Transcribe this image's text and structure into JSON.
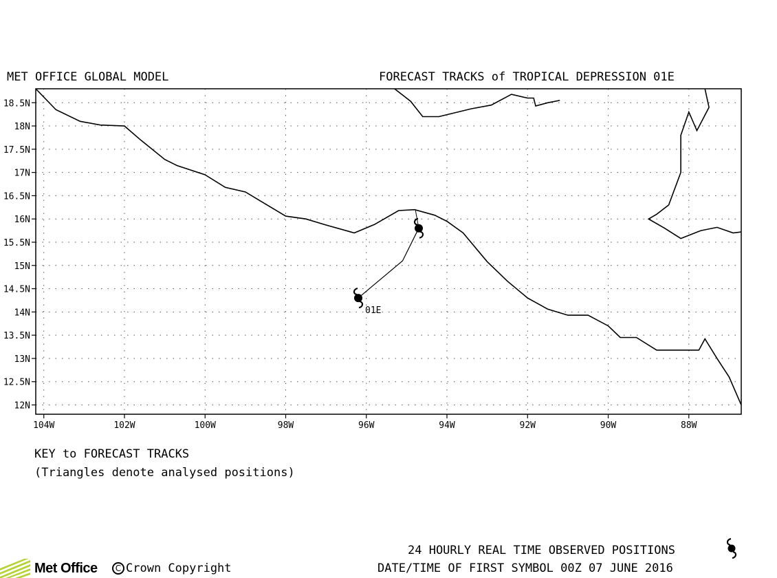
{
  "header": {
    "model": "MET OFFICE GLOBAL MODEL",
    "title": "FORECAST TRACKS of TROPICAL DEPRESSION 01E"
  },
  "map": {
    "lon_range": [
      -104.2,
      -86.7
    ],
    "lat_range": [
      11.8,
      18.8
    ],
    "grid": "dotted, every 2° longitude and 0.5° latitude",
    "x_ticks": [
      {
        "lon": -104,
        "label": "104W"
      },
      {
        "lon": -102,
        "label": "102W"
      },
      {
        "lon": -100,
        "label": "100W"
      },
      {
        "lon": -98,
        "label": "98W"
      },
      {
        "lon": -96,
        "label": "96W"
      },
      {
        "lon": -94,
        "label": "94W"
      },
      {
        "lon": -92,
        "label": "92W"
      },
      {
        "lon": -90,
        "label": "90W"
      },
      {
        "lon": -88,
        "label": "88W"
      }
    ],
    "y_ticks": [
      {
        "lat": 18.5,
        "label": "18.5N"
      },
      {
        "lat": 18,
        "label": "18N"
      },
      {
        "lat": 17.5,
        "label": "17.5N"
      },
      {
        "lat": 17,
        "label": "17N"
      },
      {
        "lat": 16.5,
        "label": "16.5N"
      },
      {
        "lat": 16,
        "label": "16N"
      },
      {
        "lat": 15.5,
        "label": "15.5N"
      },
      {
        "lat": 15,
        "label": "15N"
      },
      {
        "lat": 14.5,
        "label": "14.5N"
      },
      {
        "lat": 14,
        "label": "14N"
      },
      {
        "lat": 13.5,
        "label": "13.5N"
      },
      {
        "lat": 13,
        "label": "13N"
      },
      {
        "lat": 12.5,
        "label": "12.5N"
      },
      {
        "lat": 12,
        "label": "12N"
      }
    ],
    "coastlines": [
      [
        [
          -104.2,
          18.8
        ],
        [
          -103.7,
          18.35
        ],
        [
          -103.1,
          18.1
        ],
        [
          -102.6,
          18.02
        ],
        [
          -102.0,
          18.0
        ],
        [
          -101.6,
          17.7
        ],
        [
          -101.0,
          17.28
        ],
        [
          -100.7,
          17.15
        ],
        [
          -100.0,
          16.95
        ],
        [
          -99.5,
          16.68
        ],
        [
          -99.0,
          16.58
        ],
        [
          -98.5,
          16.32
        ],
        [
          -98.0,
          16.06
        ],
        [
          -97.5,
          16.0
        ],
        [
          -97.0,
          15.87
        ],
        [
          -96.3,
          15.7
        ],
        [
          -95.8,
          15.88
        ],
        [
          -95.2,
          16.18
        ],
        [
          -94.8,
          16.2
        ],
        [
          -94.3,
          16.08
        ],
        [
          -94.0,
          15.95
        ],
        [
          -93.6,
          15.7
        ],
        [
          -93.0,
          15.08
        ],
        [
          -92.5,
          14.66
        ],
        [
          -92.0,
          14.3
        ],
        [
          -91.5,
          14.06
        ],
        [
          -91.0,
          13.93
        ],
        [
          -90.5,
          13.93
        ],
        [
          -90.0,
          13.7
        ],
        [
          -89.7,
          13.45
        ],
        [
          -89.3,
          13.45
        ],
        [
          -88.8,
          13.18
        ],
        [
          -88.0,
          13.18
        ],
        [
          -87.75,
          13.18
        ],
        [
          -87.6,
          13.42
        ],
        [
          -87.3,
          13.0
        ],
        [
          -87.0,
          12.6
        ],
        [
          -86.7,
          12.0
        ]
      ],
      [
        [
          -95.3,
          18.8
        ],
        [
          -94.9,
          18.53
        ],
        [
          -94.6,
          18.2
        ],
        [
          -94.2,
          18.2
        ],
        [
          -93.4,
          18.37
        ],
        [
          -92.9,
          18.45
        ],
        [
          -92.4,
          18.68
        ],
        [
          -92.0,
          18.6
        ],
        [
          -91.85,
          18.6
        ],
        [
          -91.8,
          18.43
        ],
        [
          -91.5,
          18.5
        ],
        [
          -91.2,
          18.55
        ]
      ],
      [
        [
          -87.6,
          18.8
        ],
        [
          -87.5,
          18.4
        ],
        [
          -87.8,
          17.9
        ],
        [
          -88.0,
          18.3
        ],
        [
          -88.2,
          17.8
        ],
        [
          -88.2,
          17.0
        ],
        [
          -88.5,
          16.3
        ],
        [
          -88.8,
          16.1
        ],
        [
          -89.0,
          16.0
        ],
        [
          -88.6,
          15.8
        ],
        [
          -88.2,
          15.58
        ],
        [
          -87.7,
          15.75
        ],
        [
          -87.3,
          15.82
        ],
        [
          -86.9,
          15.7
        ],
        [
          -86.7,
          15.72
        ]
      ]
    ],
    "storm_track": {
      "name": "01E",
      "points": [
        [
          -96.2,
          14.3
        ],
        [
          -95.1,
          15.1
        ],
        [
          -94.7,
          15.8
        ]
      ],
      "extension": [
        [
          -94.7,
          15.8
        ],
        [
          -94.78,
          16.18
        ]
      ]
    }
  },
  "key": {
    "title": "KEY to FORECAST TRACKS",
    "note": "(Triangles denote analysed positions)"
  },
  "footer": {
    "observed_legend": "24 HOURLY REAL TIME OBSERVED POSITIONS",
    "first_symbol": "DATE/TIME OF FIRST SYMBOL 00Z 07 JUNE 2016",
    "brand": "Met Office",
    "copyright_symbol": "C",
    "copyright": "Crown Copyright"
  },
  "colors": {
    "brand_green": "#b5d334",
    "line": "#000000",
    "grid": "#555555"
  }
}
